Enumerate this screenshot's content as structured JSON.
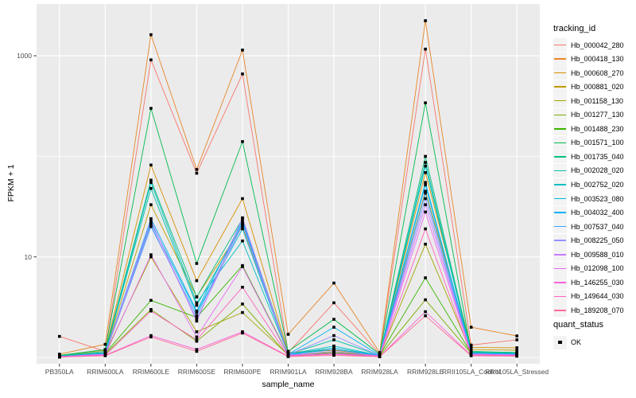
{
  "figure": {
    "background": "#ffffff",
    "panel_background": "#ebebeb",
    "grid_color": "#ffffff",
    "tick_color": "#333333",
    "axis_text_color": "#4d4d4d",
    "point_color": "#000000",
    "legend_key_background": "#f3f3f3"
  },
  "legend": {
    "tracking_title": "tracking_id",
    "quant_title": "quant_status",
    "quant_items": [
      {
        "label": "OK",
        "marker": "black-square"
      }
    ]
  },
  "chart_data": {
    "type": "line",
    "title": "",
    "xlabel": "sample_name",
    "ylabel": "FPKM + 1",
    "y_scale": "log10",
    "ylim": [
      1,
      2500
    ],
    "y_ticks": [
      {
        "label": "1000",
        "value": 1000
      },
      {
        "label": "10",
        "value": 10
      }
    ],
    "y_minor_breaks": [
      1,
      100
    ],
    "grid": "on",
    "legend_position": "right",
    "categories": [
      "PB350LA",
      "RRIM600LA",
      "RRIM600LE",
      "RRIM600SE",
      "RRIM600PE",
      "RRIM901LA",
      "RRIM928BA",
      "RRIM928LA",
      "RRIM928LE",
      "RRII105LA_Control",
      "RRII105LA_Stressed"
    ],
    "series": [
      {
        "name": "Hb_000042_280",
        "color": "#F8766D",
        "values": [
          1.62,
          1.15,
          910,
          68,
          660,
          1.12,
          3.5,
          1.08,
          1165,
          1.33,
          1.5
        ]
      },
      {
        "name": "Hb_000418_130",
        "color": "#E88526",
        "values": [
          1.08,
          1.35,
          1620,
          74,
          1140,
          1.7,
          5.5,
          1.12,
          2230,
          2.0,
          1.64
        ]
      },
      {
        "name": "Hb_000608_270",
        "color": "#D89000",
        "values": [
          1.05,
          1.18,
          82,
          5.8,
          38,
          1.12,
          1.2,
          1.06,
          69,
          1.26,
          1.25
        ]
      },
      {
        "name": "Hb_000881_020",
        "color": "#C09B00",
        "values": [
          1.04,
          1.12,
          33,
          4.0,
          20,
          1.1,
          1.18,
          1.05,
          45,
          1.2,
          1.18
        ]
      },
      {
        "name": "Hb_001158_130",
        "color": "#A3A500",
        "values": [
          1.03,
          1.1,
          10,
          1.8,
          2.8,
          1.06,
          1.12,
          1.04,
          13.4,
          1.12,
          1.1
        ]
      },
      {
        "name": "Hb_001277_130",
        "color": "#7CAE00",
        "values": [
          1.02,
          1.08,
          3.0,
          1.45,
          3.4,
          1.04,
          1.1,
          1.04,
          3.75,
          1.1,
          1.08
        ]
      },
      {
        "name": "Hb_001488_230",
        "color": "#39B600",
        "values": [
          1.03,
          1.1,
          3.7,
          2.5,
          8.2,
          1.06,
          1.12,
          1.05,
          6.2,
          1.1,
          1.1
        ]
      },
      {
        "name": "Hb_001571_100",
        "color": "#00BB4E",
        "values": [
          1.05,
          1.2,
          300,
          8.6,
          140,
          1.15,
          2.4,
          1.08,
          340,
          1.15,
          1.12
        ]
      },
      {
        "name": "Hb_001735_040",
        "color": "#00BF7D",
        "values": [
          1.04,
          1.15,
          58,
          4.0,
          24,
          1.1,
          1.2,
          1.06,
          100,
          1.14,
          1.12
        ]
      },
      {
        "name": "Hb_002028_020",
        "color": "#00C1A3",
        "values": [
          1.03,
          1.12,
          48,
          3.3,
          21,
          1.08,
          1.5,
          1.05,
          87,
          1.12,
          1.1
        ]
      },
      {
        "name": "Hb_002752_020",
        "color": "#00BFC4",
        "values": [
          1.03,
          1.1,
          55,
          3.5,
          14.4,
          1.08,
          1.3,
          1.05,
          80,
          1.12,
          1.1
        ]
      },
      {
        "name": "Hb_003523_080",
        "color": "#00BAE0",
        "values": [
          1.02,
          1.1,
          22,
          2.8,
          19,
          1.07,
          1.25,
          1.05,
          55,
          1.1,
          1.08
        ]
      },
      {
        "name": "Hb_004032_400",
        "color": "#00B0F6",
        "values": [
          1.02,
          1.1,
          24,
          2.9,
          23,
          1.07,
          2.0,
          1.05,
          52,
          1.1,
          1.08
        ]
      },
      {
        "name": "Hb_007537_040",
        "color": "#35A2FF",
        "values": [
          1.02,
          1.08,
          20,
          2.6,
          22,
          1.06,
          1.2,
          1.04,
          43,
          1.1,
          1.08
        ]
      },
      {
        "name": "Hb_008225_050",
        "color": "#9590FF",
        "values": [
          1.02,
          1.08,
          21,
          2.4,
          21,
          1.06,
          1.65,
          1.04,
          38,
          1.08,
          1.06
        ]
      },
      {
        "name": "Hb_009588_010",
        "color": "#C77CFF",
        "values": [
          1.02,
          1.08,
          23,
          2.3,
          24.5,
          1.05,
          1.15,
          1.04,
          33,
          1.08,
          1.06
        ]
      },
      {
        "name": "Hb_012098_100",
        "color": "#E76BF3",
        "values": [
          1.02,
          1.06,
          10.5,
          1.6,
          8.0,
          1.04,
          1.1,
          1.03,
          28,
          1.08,
          1.05
        ]
      },
      {
        "name": "Hb_146255_030",
        "color": "#FA62DB",
        "values": [
          1.01,
          1.05,
          1.65,
          1.2,
          1.8,
          1.03,
          1.08,
          1.02,
          2.85,
          1.05,
          1.04
        ]
      },
      {
        "name": "Hb_149644_030",
        "color": "#FF62BC",
        "values": [
          1.01,
          1.05,
          2.9,
          1.5,
          5.0,
          1.03,
          1.08,
          1.02,
          19,
          1.06,
          1.04
        ]
      },
      {
        "name": "Hb_189208_070",
        "color": "#FF6A98",
        "values": [
          1.01,
          1.04,
          1.6,
          1.15,
          1.75,
          1.02,
          1.05,
          1.02,
          2.6,
          1.04,
          1.03
        ]
      }
    ],
    "quant_status_of_points": "OK"
  }
}
